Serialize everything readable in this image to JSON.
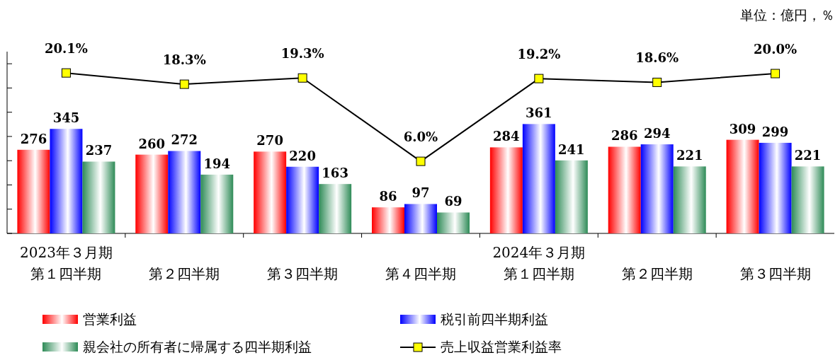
{
  "chart_data": {
    "type": "bar",
    "annotations": [
      "単位：億円，％"
    ],
    "categories": [
      "2023年３月期第１四半期",
      "第２四半期",
      "第３四半期",
      "第４四半期",
      "2024年３月期第１四半期",
      "第２四半期",
      "第３四半期"
    ],
    "series": [
      {
        "name": "営業利益",
        "color": "#ff0000",
        "values": [
          276,
          260,
          270,
          86,
          284,
          286,
          309
        ]
      },
      {
        "name": "税引前四半期利益",
        "color": "#0000ff",
        "values": [
          345,
          272,
          220,
          97,
          361,
          294,
          299
        ]
      },
      {
        "name": "親会社の所有者に帰属する四半期利益",
        "color": "#2e8b57",
        "values": [
          237,
          194,
          163,
          69,
          241,
          221,
          221
        ]
      },
      {
        "name": "売上収益営業利益率",
        "type": "line",
        "axis": "y2",
        "color": "#000000",
        "marker": "square",
        "values": [
          20.1,
          18.3,
          19.3,
          6.0,
          19.2,
          18.6,
          20.0
        ],
        "value_labels": [
          "20.1%",
          "18.3%",
          "19.3%",
          "6.0%",
          "19.2%",
          "18.6%",
          "20.0%"
        ]
      }
    ],
    "ylim": [
      0,
      600
    ],
    "yticks": [
      {
        "value": 0,
        "label": null
      },
      {
        "value": 80,
        "label": null
      },
      {
        "value": 160,
        "label": null
      },
      {
        "value": 240,
        "label": null
      },
      {
        "value": 320,
        "label": null
      },
      {
        "value": 400,
        "label": null
      },
      {
        "value": 480,
        "label": null
      },
      {
        "value": 560,
        "label": null
      }
    ],
    "y2lim": [
      -5.5,
      23.5
    ],
    "data_labels": true,
    "legend": "bottom",
    "grid": false
  }
}
